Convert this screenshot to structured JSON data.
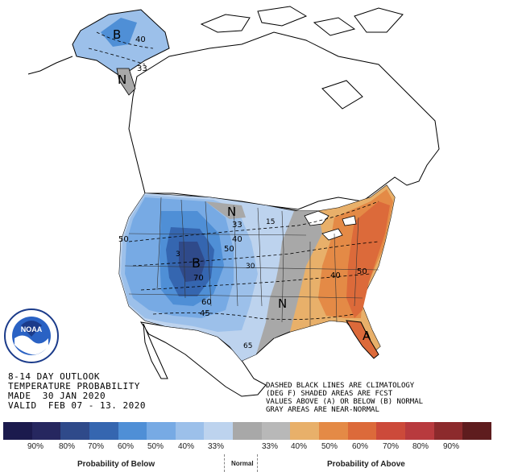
{
  "outlook": {
    "lines": [
      "8-14 DAY OUTLOOK",
      "TEMPERATURE PROBABILITY",
      "MADE  30 JAN 2020",
      "VALID  FEB 07 - 13. 2020"
    ]
  },
  "notes": [
    "DASHED BLACK LINES ARE CLIMATOLOGY",
    "(DEG F) SHADED AREAS ARE FCST",
    "VALUES ABOVE (A) OR BELOW (B) NORMAL",
    "GRAY AREAS ARE NEAR-NORMAL"
  ],
  "map_labels": {
    "alaska_b": "B",
    "alaska_40": "40",
    "alaska_33": "33",
    "alaska_n": "N",
    "west_b": "B",
    "west_70": "70",
    "west_60": "60",
    "west_50a": "50",
    "west_50b": "50",
    "west_45": "45",
    "west_40": "40",
    "plains_n": "N",
    "plains_33": "33",
    "south_n": "N",
    "east_40": "40",
    "east_50": "50",
    "east_a": "A",
    "clim_15": "15",
    "clim_30": "30",
    "clim_65": "65",
    "clim_3": "3"
  },
  "legend": {
    "colors": [
      "#1b1a4d",
      "#26275f",
      "#2f4a8a",
      "#3566b0",
      "#4f8fd6",
      "#77aae4",
      "#9cc0ea",
      "#bdd3ee",
      "#a8a8a8",
      "#b8b8b8",
      "#e8b06a",
      "#e48a46",
      "#dc6a3a",
      "#cc4a3a",
      "#b83a3e",
      "#8c2a2c",
      "#5e1c1e"
    ],
    "percents": [
      "90%",
      "80%",
      "70%",
      "60%",
      "50%",
      "40%",
      "33%",
      "33%",
      "40%",
      "50%",
      "60%",
      "70%",
      "80%",
      "90%"
    ],
    "below_label": "Probability of Below",
    "normal_label": "Normal",
    "above_label": "Probability of Above"
  },
  "logo": {
    "text": "NOAA"
  }
}
